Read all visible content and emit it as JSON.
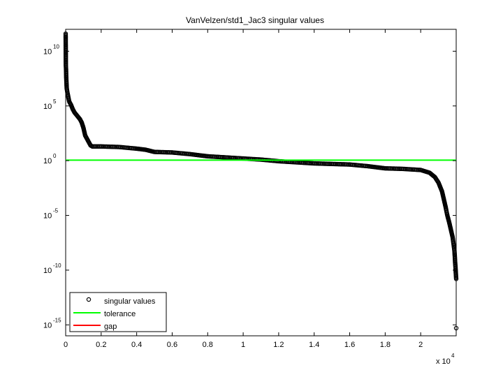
{
  "chart_data": {
    "type": "scatter",
    "title": "VanVelzen/std1_Jac3 singular values",
    "xlabel": "",
    "ylabel": "",
    "x_multiplier": "x 10",
    "x_multiplier_exp": "4",
    "xlim": [
      0,
      2.2
    ],
    "ylim_log10": [
      -16,
      12
    ],
    "y_scale": "log",
    "grid": false,
    "legend_position": "bottom-left",
    "x_ticks": [
      {
        "value": 0,
        "label": "0"
      },
      {
        "value": 0.2,
        "label": "0.2"
      },
      {
        "value": 0.4,
        "label": "0.4"
      },
      {
        "value": 0.6,
        "label": "0.6"
      },
      {
        "value": 0.8,
        "label": "0.8"
      },
      {
        "value": 1.0,
        "label": "1"
      },
      {
        "value": 1.2,
        "label": "1.2"
      },
      {
        "value": 1.4,
        "label": "1.4"
      },
      {
        "value": 1.6,
        "label": "1.6"
      },
      {
        "value": 1.8,
        "label": "1.8"
      },
      {
        "value": 2.0,
        "label": "2"
      }
    ],
    "y_ticks": [
      {
        "exp": 10,
        "base": "10",
        "sup": "10"
      },
      {
        "exp": 5,
        "base": "10",
        "sup": "5"
      },
      {
        "exp": 0,
        "base": "10",
        "sup": "0"
      },
      {
        "exp": -5,
        "base": "10",
        "sup": "-5"
      },
      {
        "exp": -10,
        "base": "10",
        "sup": "-10"
      },
      {
        "exp": -15,
        "base": "10",
        "sup": "-15"
      }
    ],
    "series": [
      {
        "name": "singular values",
        "marker": "circle",
        "color": "#000000",
        "points_log10": [
          [
            0.0,
            11.6
          ],
          [
            0.001,
            8.7
          ],
          [
            0.002,
            8.4
          ],
          [
            0.003,
            7.7
          ],
          [
            0.004,
            7.3
          ],
          [
            0.006,
            6.6
          ],
          [
            0.01,
            6.2
          ],
          [
            0.015,
            5.8
          ],
          [
            0.02,
            5.4
          ],
          [
            0.03,
            5.1
          ],
          [
            0.04,
            4.7
          ],
          [
            0.05,
            4.4
          ],
          [
            0.06,
            4.2
          ],
          [
            0.07,
            4.0
          ],
          [
            0.08,
            3.8
          ],
          [
            0.09,
            3.5
          ],
          [
            0.1,
            3.0
          ],
          [
            0.11,
            2.3
          ],
          [
            0.12,
            2.0
          ],
          [
            0.13,
            1.7
          ],
          [
            0.14,
            1.4
          ],
          [
            0.15,
            1.3
          ],
          [
            0.2,
            1.3
          ],
          [
            0.3,
            1.25
          ],
          [
            0.4,
            1.1
          ],
          [
            0.45,
            1.0
          ],
          [
            0.5,
            0.8
          ],
          [
            0.6,
            0.75
          ],
          [
            0.7,
            0.6
          ],
          [
            0.8,
            0.4
          ],
          [
            0.9,
            0.3
          ],
          [
            1.0,
            0.2
          ],
          [
            1.1,
            0.1
          ],
          [
            1.2,
            -0.05
          ],
          [
            1.3,
            -0.15
          ],
          [
            1.4,
            -0.25
          ],
          [
            1.5,
            -0.3
          ],
          [
            1.6,
            -0.35
          ],
          [
            1.7,
            -0.5
          ],
          [
            1.8,
            -0.7
          ],
          [
            1.9,
            -0.75
          ],
          [
            1.95,
            -0.8
          ],
          [
            2.0,
            -0.85
          ],
          [
            2.05,
            -1.1
          ],
          [
            2.08,
            -1.5
          ],
          [
            2.1,
            -2.0
          ],
          [
            2.12,
            -2.8
          ],
          [
            2.13,
            -3.5
          ],
          [
            2.14,
            -4.2
          ],
          [
            2.15,
            -5.0
          ],
          [
            2.16,
            -5.6
          ],
          [
            2.17,
            -6.3
          ],
          [
            2.18,
            -7.0
          ],
          [
            2.185,
            -7.6
          ],
          [
            2.19,
            -8.2
          ],
          [
            2.192,
            -8.7
          ],
          [
            2.194,
            -9.3
          ],
          [
            2.196,
            -9.7
          ],
          [
            2.198,
            -10.3
          ],
          [
            2.2,
            -10.8
          ],
          [
            2.2,
            -15.3
          ]
        ]
      },
      {
        "name": "tolerance",
        "color": "#00ff00",
        "y_log10": 0.05
      },
      {
        "name": "gap",
        "color": "#ff0000"
      }
    ]
  }
}
